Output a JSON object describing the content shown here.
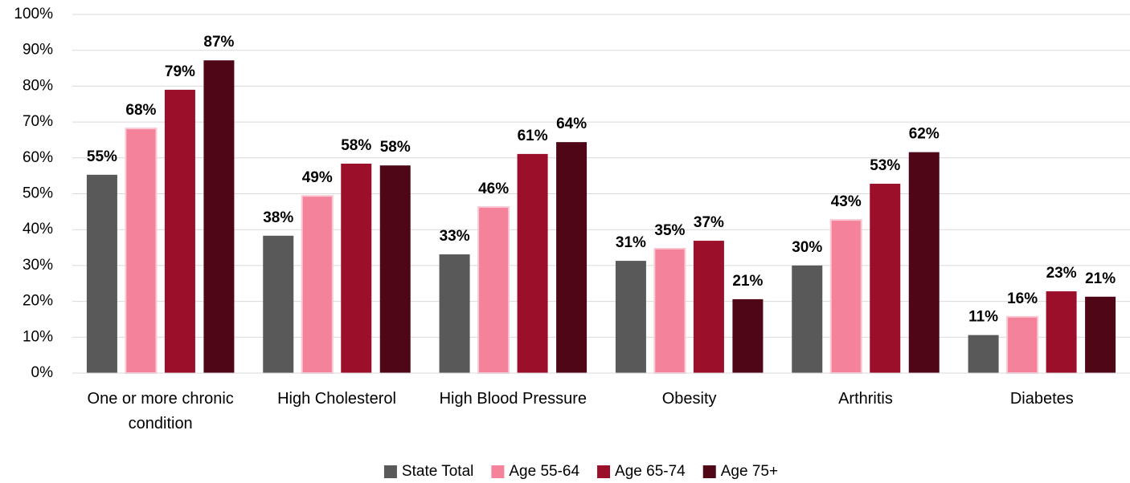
{
  "chart_data": {
    "type": "bar",
    "categories": [
      "One or more chronic condition",
      "High Cholesterol",
      "High Blood Pressure",
      "Obesity",
      "Arthritis",
      "Diabetes"
    ],
    "series": [
      {
        "name": "State Total",
        "color": "#595959",
        "values": [
          55.3,
          38.3,
          33.1,
          31.3,
          30,
          10.6
        ],
        "value_labels": [
          "55%",
          "38%",
          "33%",
          "31%",
          "30%",
          "11%"
        ]
      },
      {
        "name": "Age 55-64",
        "color": "#f4829a",
        "values": [
          68.2,
          49.4,
          46.3,
          34.7,
          42.7,
          15.7
        ],
        "value_labels": [
          "68%",
          "49%",
          "46%",
          "35%",
          "43%",
          "16%"
        ]
      },
      {
        "name": "Age 65-74",
        "color": "#9b0f2a",
        "values": [
          79,
          58.4,
          61.1,
          36.9,
          52.8,
          22.8
        ],
        "value_labels": [
          "79%",
          "58%",
          "61%",
          "37%",
          "53%",
          "23%"
        ]
      },
      {
        "name": "Age 75+",
        "color": "#4f0717",
        "values": [
          87.2,
          57.9,
          64.4,
          20.6,
          61.6,
          21.3
        ],
        "value_labels": [
          "87%",
          "58%",
          "64%",
          "21%",
          "62%",
          "21%"
        ]
      }
    ],
    "ylim": [
      0,
      100
    ],
    "yticks": [
      {
        "value": 0,
        "label": "0%"
      },
      {
        "value": 10,
        "label": "10%"
      },
      {
        "value": 20,
        "label": "20%"
      },
      {
        "value": 30,
        "label": "30%"
      },
      {
        "value": 40,
        "label": "40%"
      },
      {
        "value": 50,
        "label": "50%"
      },
      {
        "value": 60,
        "label": "60%"
      },
      {
        "value": 70,
        "label": "70%"
      },
      {
        "value": 80,
        "label": "80%"
      },
      {
        "value": 90,
        "label": "90%"
      },
      {
        "value": 100,
        "label": "100%"
      }
    ],
    "grid": true,
    "legend": "bottom"
  }
}
